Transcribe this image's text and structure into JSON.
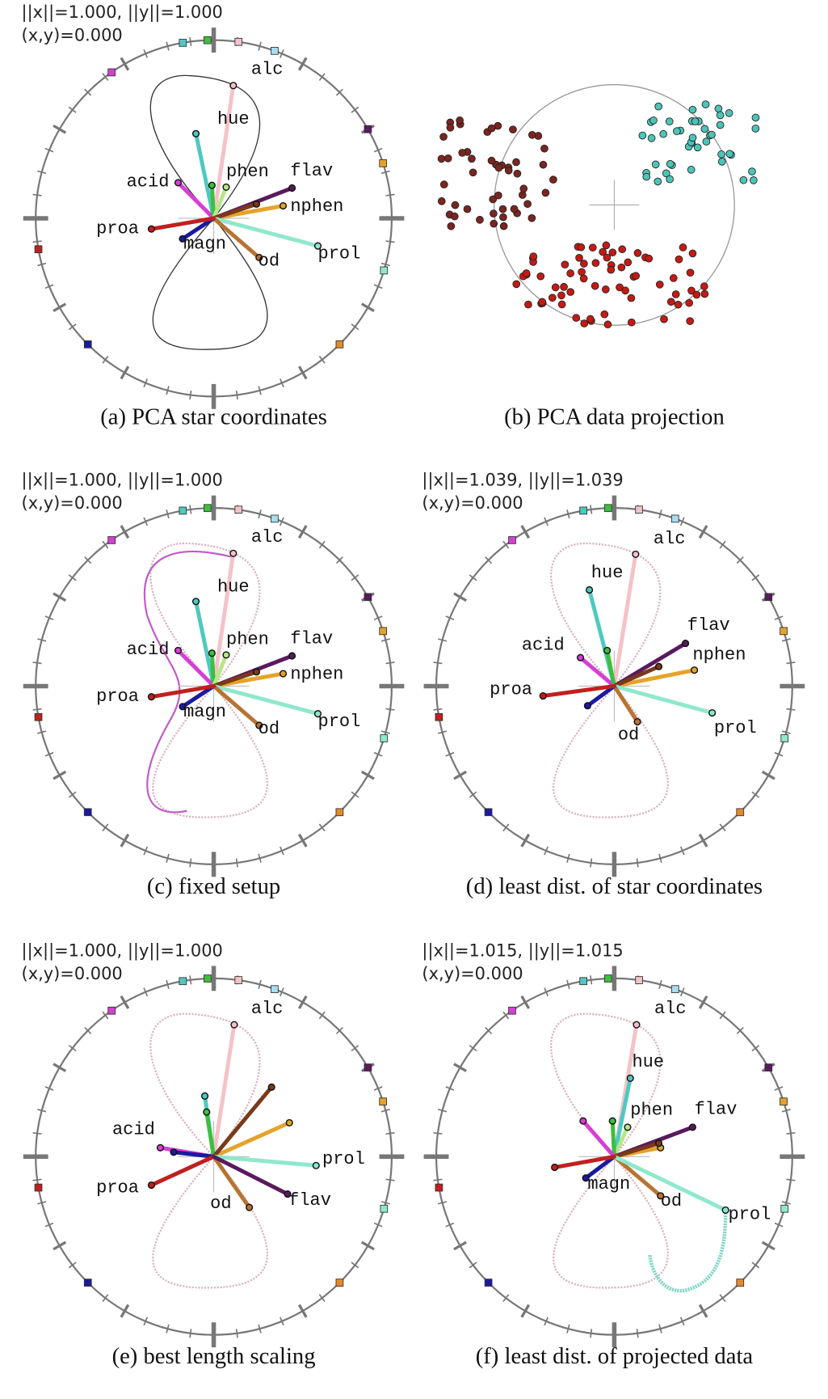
{
  "panels": [
    {
      "norm": "||x||=1.000,  ||y||=1.000",
      "dot": "(x,y)=0.000",
      "caption": "(a) PCA star coordinates",
      "labels": [
        "alc",
        "hue",
        "acid",
        "phen",
        "flav",
        "nphen",
        "prol",
        "od",
        "magn",
        "proa"
      ]
    },
    {
      "caption": "(b) PCA data projection"
    },
    {
      "norm": "||x||=1.000,  ||y||=1.000",
      "dot": "(x,y)=0.000",
      "caption": "(c) fixed setup",
      "labels": [
        "alc",
        "hue",
        "acid",
        "phen",
        "flav",
        "nphen",
        "prol",
        "od",
        "magn",
        "proa"
      ]
    },
    {
      "norm": "||x||=1.039,  ||y||=1.039",
      "dot": "(x,y)=0.000",
      "caption": "(d) least dist. of star coordinates",
      "labels": [
        "alc",
        "hue",
        "acid",
        "flav",
        "nphen",
        "proa",
        "od",
        "prol"
      ]
    },
    {
      "norm": "||x||=1.000,  ||y||=1.000",
      "dot": "(x,y)=0.000",
      "caption": "(e) best length scaling",
      "labels": [
        "alc",
        "acid",
        "prol",
        "proa",
        "od",
        "flav"
      ]
    },
    {
      "norm": "||x||=1.015,  ||y||=1.015",
      "dot": "(x,y)=0.000",
      "caption": "(f) least dist. of projected data",
      "labels": [
        "alc",
        "hue",
        "phen",
        "flav",
        "magn",
        "od",
        "prol"
      ]
    }
  ]
}
